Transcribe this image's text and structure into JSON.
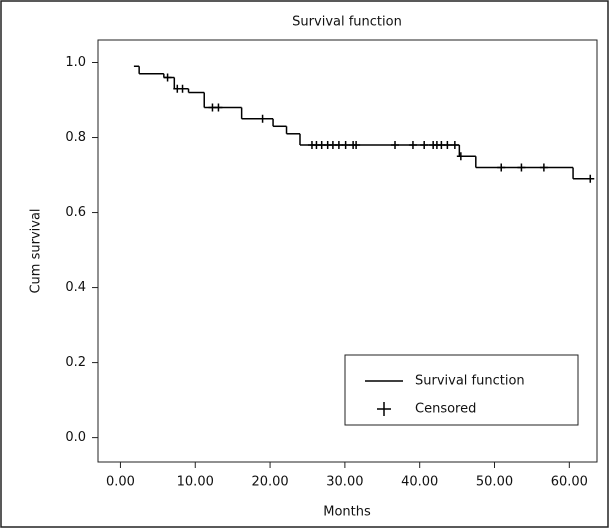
{
  "chart_data": {
    "type": "step",
    "title": "Survival function",
    "x_label": "Months",
    "y_label": "Cum survival",
    "series": [
      {
        "name": "Survival function",
        "color": "#000000",
        "x": [
          1.8,
          2.5,
          5.8,
          7.2,
          9.1,
          11.2,
          16.2,
          20.4,
          22.2,
          24.0,
          45.3,
          47.5,
          60.5,
          63.2
        ],
        "values": [
          0.99,
          0.97,
          0.96,
          0.93,
          0.92,
          0.88,
          0.85,
          0.83,
          0.81,
          0.78,
          0.75,
          0.72,
          0.69,
          0.69
        ]
      },
      {
        "name": "Censored",
        "color": "#000000",
        "x": [
          6.3,
          7.6,
          8.3,
          12.3,
          13.1,
          19.0,
          25.6,
          26.2,
          26.9,
          27.7,
          28.4,
          29.2,
          30.1,
          31.1,
          31.5,
          36.7,
          39.1,
          40.6,
          41.8,
          42.3,
          42.9,
          43.7,
          44.7,
          45.5,
          50.9,
          53.6,
          56.6,
          62.8
        ],
        "values": [
          0.96,
          0.93,
          0.93,
          0.88,
          0.88,
          0.85,
          0.78,
          0.78,
          0.78,
          0.78,
          0.78,
          0.78,
          0.78,
          0.78,
          0.78,
          0.78,
          0.78,
          0.78,
          0.78,
          0.78,
          0.78,
          0.78,
          0.78,
          0.75,
          0.72,
          0.72,
          0.72,
          0.69
        ]
      }
    ],
    "xlim": [
      -3,
      63.7
    ],
    "ylim": [
      -0.065,
      1.06
    ],
    "xticks": [
      {
        "value": 0,
        "label": "0.00"
      },
      {
        "value": 10,
        "label": "10.00"
      },
      {
        "value": 20,
        "label": "20.00"
      },
      {
        "value": 30,
        "label": "30.00"
      },
      {
        "value": 40,
        "label": "40.00"
      },
      {
        "value": 50,
        "label": "50.00"
      },
      {
        "value": 60,
        "label": "60.00"
      }
    ],
    "yticks": [
      {
        "value": 0,
        "label": "0.0"
      },
      0.2,
      0.4,
      0.6,
      0.8,
      {
        "value": 1,
        "label": "1.0"
      }
    ],
    "legend": "lower right"
  }
}
